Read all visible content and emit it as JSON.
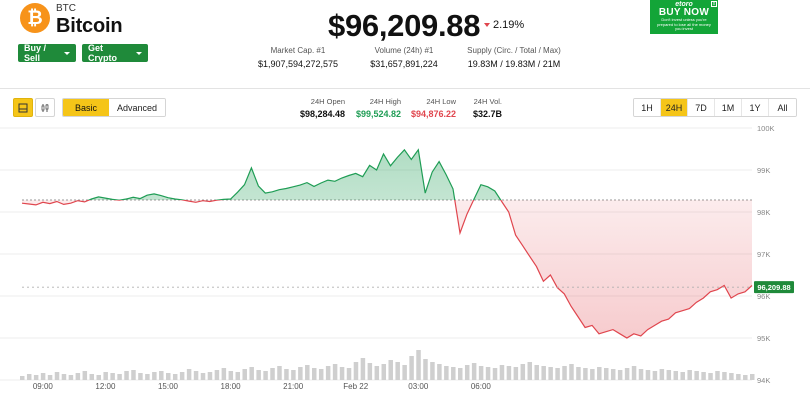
{
  "coin": {
    "logo_glyph": "₿",
    "ticker": "BTC",
    "name": "Bitcoin",
    "price": "$96,209.88",
    "change": "2.19%",
    "change_direction": "down"
  },
  "buttons": {
    "buy_sell": "Buy / Sell",
    "get_crypto": "Get Crypto"
  },
  "stats": {
    "market_cap_label": "Market Cap. #1",
    "market_cap_value": "$1,907,594,272,575",
    "volume_label": "Volume (24h) #1",
    "volume_value": "$31,657,891,224",
    "supply_label": "Supply (Circ. / Total / Max)",
    "supply_value": "19.83M / 19.83M / 21M"
  },
  "ad": {
    "brand": "etoro",
    "cta": "BUY NOW",
    "disclaimer": "Don't invest unless you're prepared to lose all the money you invest",
    "close": "x"
  },
  "toolbar": {
    "view_basic": "Basic",
    "view_advanced": "Advanced",
    "open_label": "24H Open",
    "open_value": "$98,284.48",
    "high_label": "24H High",
    "high_value": "$99,524.82",
    "low_label": "24H Low",
    "low_value": "$94,876.22",
    "vol_label": "24H Vol.",
    "vol_value": "$32.7B",
    "ranges": [
      "1H",
      "24H",
      "7D",
      "1M",
      "1Y",
      "All"
    ],
    "active_range": "24H"
  },
  "colors": {
    "up": "#1f9d55",
    "down": "#e0464e",
    "accent": "#f5c518",
    "brand_green": "#1f8a3a"
  },
  "chart_data": {
    "type": "area",
    "y_axis_ticks": [
      "100K",
      "99K",
      "98K",
      "97K",
      "96K",
      "95K",
      "94K"
    ],
    "x_axis_ticks": [
      "09:00",
      "12:00",
      "15:00",
      "18:00",
      "21:00",
      "Feb 22",
      "03:00",
      "06:00"
    ],
    "ylim": [
      94000,
      100000
    ],
    "baseline": 98284.48,
    "current_price_label": "96,209.88",
    "current_price": 96209.88,
    "x_step_minutes": 20,
    "price_series": [
      98210,
      98190,
      98170,
      98230,
      98200,
      98250,
      98180,
      98210,
      98270,
      98240,
      98310,
      98360,
      98330,
      98300,
      98280,
      98310,
      98350,
      98320,
      98400,
      98430,
      98390,
      98340,
      98310,
      98290,
      98260,
      98230,
      98270,
      98250,
      98280,
      98300,
      98310,
      98470,
      98650,
      99050,
      98620,
      98450,
      98480,
      98530,
      98560,
      98600,
      98640,
      98700,
      98610,
      98690,
      98760,
      98730,
      98810,
      98870,
      98920,
      98840,
      99110,
      99000,
      99380,
      99100,
      99300,
      99480,
      99250,
      99480,
      98450,
      98950,
      99200,
      98890,
      98550,
      97500,
      97950,
      98300,
      98650,
      98600,
      98500,
      98250,
      98000,
      97450,
      97200,
      96950,
      96700,
      96350,
      96500,
      96200,
      96050,
      95750,
      95500,
      95250,
      95300,
      95100,
      95150,
      95200,
      95100,
      95000,
      95100,
      95050,
      95200,
      95300,
      95400,
      95450,
      95600,
      95650,
      95700,
      95850,
      95950,
      96100,
      96150,
      96250,
      95950,
      96050,
      96100,
      96250
    ],
    "volume_series": [
      4,
      6,
      5,
      7,
      5,
      8,
      6,
      5,
      7,
      9,
      6,
      5,
      8,
      7,
      6,
      9,
      10,
      7,
      6,
      8,
      9,
      7,
      6,
      8,
      11,
      9,
      7,
      8,
      10,
      12,
      9,
      8,
      11,
      13,
      10,
      9,
      12,
      14,
      11,
      10,
      13,
      15,
      12,
      11,
      14,
      16,
      13,
      12,
      18,
      22,
      17,
      14,
      16,
      20,
      18,
      15,
      24,
      30,
      21,
      18,
      16,
      14,
      13,
      12,
      15,
      17,
      14,
      13,
      12,
      15,
      14,
      13,
      16,
      18,
      15,
      14,
      13,
      12,
      14,
      16,
      13,
      12,
      11,
      13,
      12,
      11,
      10,
      12,
      14,
      11,
      10,
      9,
      11,
      10,
      9,
      8,
      10,
      9,
      8,
      7,
      9,
      8,
      7,
      6,
      5,
      6
    ]
  }
}
